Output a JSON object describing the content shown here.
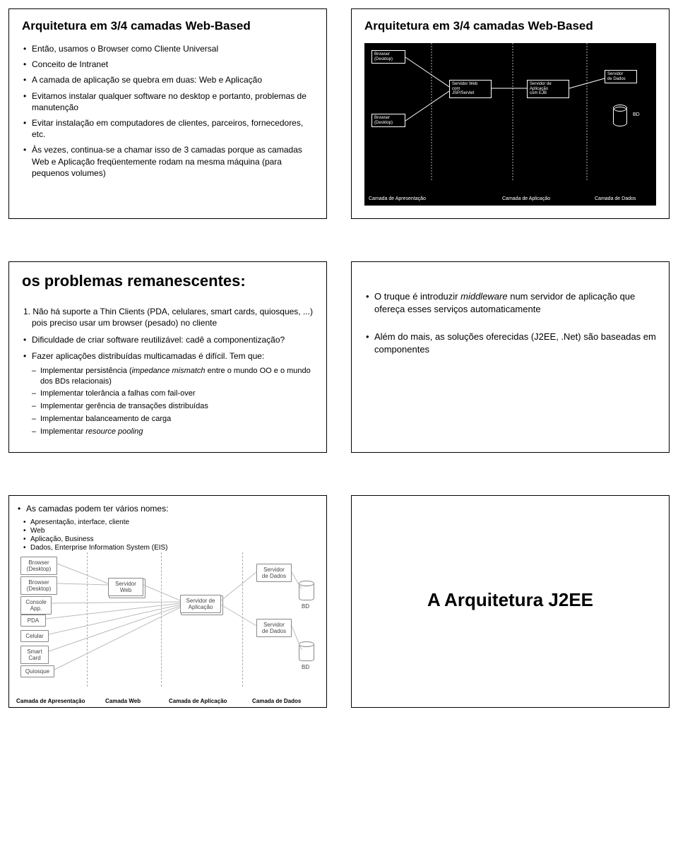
{
  "slide1": {
    "title": "Arquitetura em 3/4 camadas Web-Based",
    "bullets": [
      "Então, usamos o Browser como Cliente Universal",
      "Conceito de Intranet",
      "A camada de aplicação se quebra em duas: Web e Aplicação",
      "Evitamos instalar qualquer software no desktop e portanto, problemas de manutenção",
      "Evitar instalação em computadores de clientes, parceiros, fornecedores, etc.",
      "Às vezes, continua-se a chamar isso de 3 camadas porque as camadas Web e Aplicação freqüentemente rodam na mesma máquina (para pequenos volumes)"
    ]
  },
  "slide2": {
    "title": "Arquitetura em 3/4 camadas Web-Based",
    "boxes": {
      "browser1": "Browser\n(Desktop)",
      "browser2": "Browser\n(Desktop)",
      "web": "Servidor Web\ncom\nJSP/Servlet",
      "app": "Servidor de\nAplicação\ncom EJB",
      "data": "Servidor\nde Dados",
      "bd": "BD"
    },
    "cols": [
      "Camada de Apresentação",
      "Camada de Aplicação",
      "Camada de Dados"
    ]
  },
  "slide3": {
    "title": "os problemas remanescentes:",
    "item1_prefix": "1. ",
    "item1": "Não há suporte a Thin Clients (PDA, celulares, smart cards, quiosques, ...) pois preciso usar um browser (pesado) no cliente",
    "b1": "Dificuldade de criar software reutilizável: cadê a componentização?",
    "b2": "Fazer aplicações distribuídas multicamadas é difícil. Tem que:",
    "subs": {
      "a_pre": "Implementar persistência (",
      "a_it": "impedance mismatch",
      "a_post": " entre o mundo OO e o mundo dos BDs relacionais)",
      "b": "Implementar tolerância a falhas com fail-over",
      "c": "Implementar gerência de transações distribuídas",
      "d": "Implementar balanceamento de carga",
      "e_pre": "Implementar ",
      "e_it": "resource pooling"
    }
  },
  "slide4": {
    "b1_pre": "O truque é introduzir ",
    "b1_it": "middleware",
    "b1_post": " num servidor de aplicação que ofereça esses serviços automaticamente",
    "b2": "Além do mais, as soluções oferecidas (J2EE, .Net) são baseadas em componentes"
  },
  "slide5": {
    "intro": "As camadas podem ter vários nomes:",
    "names": [
      "Apresentação, interface, cliente",
      "Web",
      "Aplicação, Business",
      "Dados, Enterprise Information System (EIS)"
    ],
    "nodes": {
      "browser1": "Browser\n(Desktop)",
      "browser2": "Browser\n(Desktop)",
      "console": "Console\nApp.",
      "pda": "PDA",
      "celular": "Celular",
      "smart": "Smart\nCard",
      "quiosque": "Quiosque",
      "web": "Servidor\nWeb",
      "app": "Servidor de\nAplicação",
      "data1": "Servidor\nde Dados",
      "data2": "Servidor\nde Dados",
      "bd": "BD"
    },
    "cols": [
      "Camada de Apresentação",
      "Camada Web",
      "Camada de Aplicação",
      "Camada de Dados"
    ]
  },
  "slide6": {
    "title": "A Arquitetura J2EE"
  },
  "colors": {
    "border": "#000000",
    "text": "#000000",
    "diagram_dark_bg": "#000000",
    "diagram_dark_fg": "#ffffff",
    "diagram_light_line": "#888888"
  }
}
